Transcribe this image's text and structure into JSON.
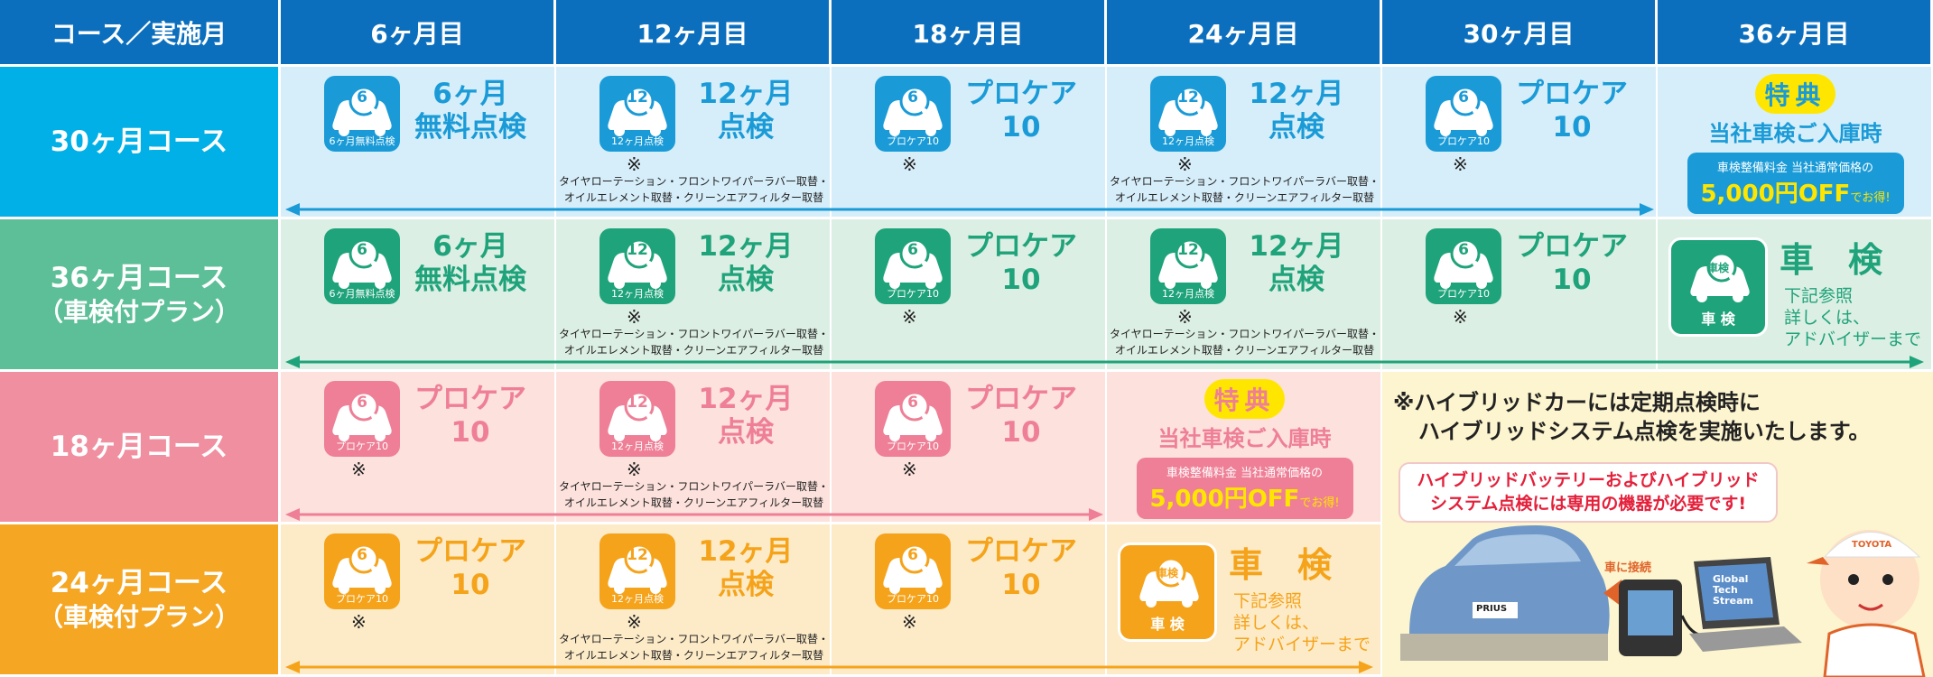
{
  "header": {
    "cells": [
      "コース／実施月",
      "6ヶ月目",
      "12ヶ月目",
      "18ヶ月目",
      "24ヶ月目",
      "30ヶ月目",
      "36ヶ月目"
    ]
  },
  "rows": [
    {
      "course": [
        "30ヶ月コース"
      ],
      "cells": [
        {
          "kind": "service",
          "icon_number": "6",
          "icon_label": "6ヶ月無料点検",
          "title": [
            "6ヶ月",
            "無料点検"
          ]
        },
        {
          "kind": "service",
          "icon_number": "12",
          "icon_label": "12ヶ月点検",
          "title": [
            "12ヶ月",
            "点検"
          ],
          "note": "※",
          "detail": [
            "タイヤローテーション・フロントワイパーラバー取替・",
            "オイルエレメント取替・クリーンエアフィルター取替"
          ]
        },
        {
          "kind": "service",
          "icon_number": "6",
          "icon_label": "プロケア10",
          "title": [
            "プロケア",
            "10"
          ],
          "note": "※"
        },
        {
          "kind": "service",
          "icon_number": "12",
          "icon_label": "12ヶ月点検",
          "title": [
            "12ヶ月",
            "点検"
          ],
          "note": "※",
          "detail": [
            "タイヤローテーション・フロントワイパーラバー取替・",
            "オイルエレメント取替・クリーンエアフィルター取替"
          ]
        },
        {
          "kind": "service",
          "icon_number": "6",
          "icon_label": "プロケア10",
          "title": [
            "プロケア",
            "10"
          ],
          "note": "※"
        },
        {
          "kind": "special",
          "badge": "特典",
          "headline": "当社車検ご入庫時",
          "sub": "車検整備料金 当社通常価格の",
          "offer": "5,000円OFF",
          "offer_suffix": "でお得!"
        }
      ]
    },
    {
      "course": [
        "36ヶ月コース",
        "（車検付プラン）"
      ],
      "cells": [
        {
          "kind": "service",
          "icon_number": "6",
          "icon_label": "6ヶ月無料点検",
          "title": [
            "6ヶ月",
            "無料点検"
          ]
        },
        {
          "kind": "service",
          "icon_number": "12",
          "icon_label": "12ヶ月点検",
          "title": [
            "12ヶ月",
            "点検"
          ],
          "note": "※",
          "detail": [
            "タイヤローテーション・フロントワイパーラバー取替・",
            "オイルエレメント取替・クリーンエアフィルター取替"
          ]
        },
        {
          "kind": "service",
          "icon_number": "6",
          "icon_label": "プロケア10",
          "title": [
            "プロケア",
            "10"
          ],
          "note": "※"
        },
        {
          "kind": "service",
          "icon_number": "12",
          "icon_label": "12ヶ月点検",
          "title": [
            "12ヶ月",
            "点検"
          ],
          "note": "※",
          "detail": [
            "タイヤローテーション・フロントワイパーラバー取替・",
            "オイルエレメント取替・クリーンエアフィルター取替"
          ]
        },
        {
          "kind": "service",
          "icon_number": "6",
          "icon_label": "プロケア10",
          "title": [
            "プロケア",
            "10"
          ],
          "note": "※"
        },
        {
          "kind": "shaken",
          "icon_top": "車検",
          "icon_bottom": "車 検",
          "title": "車　検",
          "lines": [
            "下記参照",
            "詳しくは、",
            "アドバイザーまで"
          ]
        }
      ]
    },
    {
      "course": [
        "18ヶ月コース"
      ],
      "cells": [
        {
          "kind": "service",
          "icon_number": "6",
          "icon_label": "プロケア10",
          "title": [
            "プロケア",
            "10"
          ],
          "note": "※"
        },
        {
          "kind": "service",
          "icon_number": "12",
          "icon_label": "12ヶ月点検",
          "title": [
            "12ヶ月",
            "点検"
          ],
          "note": "※",
          "detail": [
            "タイヤローテーション・フロントワイパーラバー取替・",
            "オイルエレメント取替・クリーンエアフィルター取替"
          ]
        },
        {
          "kind": "service",
          "icon_number": "6",
          "icon_label": "プロケア10",
          "title": [
            "プロケア",
            "10"
          ],
          "note": "※"
        },
        {
          "kind": "special",
          "badge": "特典",
          "headline": "当社車検ご入庫時",
          "sub": "車検整備料金 当社通常価格の",
          "offer": "5,000円OFF",
          "offer_suffix": "でお得!"
        }
      ]
    },
    {
      "course": [
        "24ヶ月コース",
        "（車検付プラン）"
      ],
      "cells": [
        {
          "kind": "service",
          "icon_number": "6",
          "icon_label": "プロケア10",
          "title": [
            "プロケア",
            "10"
          ],
          "note": "※"
        },
        {
          "kind": "service",
          "icon_number": "12",
          "icon_label": "12ヶ月点検",
          "title": [
            "12ヶ月",
            "点検"
          ],
          "note": "※",
          "detail": [
            "タイヤローテーション・フロントワイパーラバー取替・",
            "オイルエレメント取替・クリーンエアフィルター取替"
          ]
        },
        {
          "kind": "service",
          "icon_number": "6",
          "icon_label": "プロケア10",
          "title": [
            "プロケア",
            "10"
          ],
          "note": "※"
        },
        {
          "kind": "shaken",
          "icon_top": "車検",
          "icon_bottom": "車 検",
          "title": "車　検",
          "lines": [
            "下記参照",
            "詳しくは、",
            "アドバイザーまで"
          ]
        }
      ]
    }
  ],
  "hybrid": {
    "note": [
      "※ハイブリッドカーには定期点検時に",
      "ハイブリッドシステム点検を実施いたします。"
    ],
    "speech": [
      "ハイブリッドバッテリーおよびハイブリッド",
      "システム点検には専用の機器が必要です!"
    ],
    "connect": "車に接続",
    "plate": "PRIUS",
    "laptop": [
      "Global",
      "Tech",
      "Stream"
    ],
    "cap": "TOYOTA"
  }
}
